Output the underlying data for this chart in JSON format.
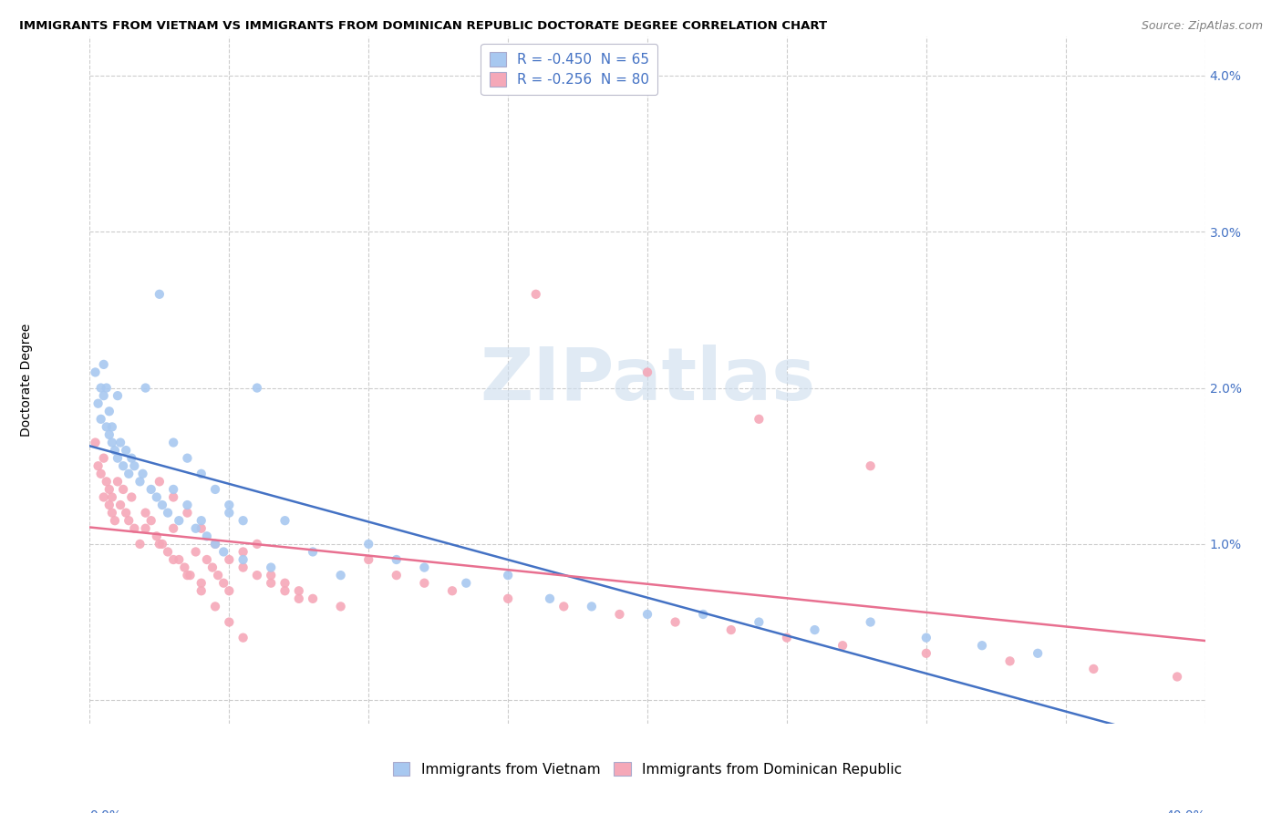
{
  "title": "IMMIGRANTS FROM VIETNAM VS IMMIGRANTS FROM DOMINICAN REPUBLIC DOCTORATE DEGREE CORRELATION CHART",
  "source": "Source: ZipAtlas.com",
  "ylabel": "Doctorate Degree",
  "xlim": [
    0.0,
    0.4
  ],
  "ylim": [
    -0.0015,
    0.0425
  ],
  "legend_blue_label": "R = -0.450  N = 65",
  "legend_pink_label": "R = -0.256  N = 80",
  "legend1_label": "Immigrants from Vietnam",
  "legend2_label": "Immigrants from Dominican Republic",
  "blue_color": "#A8C8F0",
  "pink_color": "#F5A8B8",
  "blue_line_color": "#4472C4",
  "pink_line_color": "#E87090",
  "tick_color": "#4472C4",
  "watermark": "ZIPatlas",
  "blue_scatter_x": [
    0.002,
    0.003,
    0.004,
    0.004,
    0.005,
    0.005,
    0.006,
    0.006,
    0.007,
    0.007,
    0.008,
    0.008,
    0.009,
    0.01,
    0.01,
    0.011,
    0.012,
    0.013,
    0.014,
    0.015,
    0.016,
    0.018,
    0.019,
    0.02,
    0.022,
    0.024,
    0.026,
    0.028,
    0.03,
    0.032,
    0.035,
    0.038,
    0.04,
    0.042,
    0.045,
    0.048,
    0.05,
    0.055,
    0.06,
    0.065,
    0.07,
    0.08,
    0.09,
    0.1,
    0.11,
    0.12,
    0.135,
    0.15,
    0.165,
    0.18,
    0.2,
    0.22,
    0.24,
    0.26,
    0.28,
    0.3,
    0.32,
    0.34,
    0.025,
    0.03,
    0.035,
    0.04,
    0.045,
    0.05,
    0.055
  ],
  "blue_scatter_y": [
    0.021,
    0.019,
    0.02,
    0.018,
    0.0215,
    0.0195,
    0.0175,
    0.02,
    0.0185,
    0.017,
    0.0165,
    0.0175,
    0.016,
    0.0195,
    0.0155,
    0.0165,
    0.015,
    0.016,
    0.0145,
    0.0155,
    0.015,
    0.014,
    0.0145,
    0.02,
    0.0135,
    0.013,
    0.0125,
    0.012,
    0.0135,
    0.0115,
    0.0125,
    0.011,
    0.0115,
    0.0105,
    0.01,
    0.0095,
    0.012,
    0.009,
    0.02,
    0.0085,
    0.0115,
    0.0095,
    0.008,
    0.01,
    0.009,
    0.0085,
    0.0075,
    0.008,
    0.0065,
    0.006,
    0.0055,
    0.0055,
    0.005,
    0.0045,
    0.005,
    0.004,
    0.0035,
    0.003,
    0.026,
    0.0165,
    0.0155,
    0.0145,
    0.0135,
    0.0125,
    0.0115
  ],
  "pink_scatter_x": [
    0.002,
    0.003,
    0.004,
    0.005,
    0.005,
    0.006,
    0.007,
    0.007,
    0.008,
    0.008,
    0.009,
    0.01,
    0.011,
    0.012,
    0.013,
    0.014,
    0.015,
    0.016,
    0.018,
    0.02,
    0.022,
    0.024,
    0.026,
    0.028,
    0.03,
    0.032,
    0.034,
    0.036,
    0.038,
    0.04,
    0.042,
    0.044,
    0.046,
    0.048,
    0.05,
    0.055,
    0.06,
    0.065,
    0.07,
    0.075,
    0.08,
    0.09,
    0.1,
    0.11,
    0.12,
    0.13,
    0.15,
    0.17,
    0.19,
    0.21,
    0.23,
    0.25,
    0.27,
    0.3,
    0.33,
    0.36,
    0.39,
    0.025,
    0.03,
    0.035,
    0.04,
    0.045,
    0.05,
    0.055,
    0.06,
    0.065,
    0.07,
    0.075,
    0.16,
    0.2,
    0.24,
    0.28,
    0.02,
    0.025,
    0.03,
    0.035,
    0.04,
    0.045,
    0.05,
    0.055
  ],
  "pink_scatter_y": [
    0.0165,
    0.015,
    0.0145,
    0.0155,
    0.013,
    0.014,
    0.0135,
    0.0125,
    0.013,
    0.012,
    0.0115,
    0.014,
    0.0125,
    0.0135,
    0.012,
    0.0115,
    0.013,
    0.011,
    0.01,
    0.012,
    0.0115,
    0.0105,
    0.01,
    0.0095,
    0.011,
    0.009,
    0.0085,
    0.008,
    0.0095,
    0.0075,
    0.009,
    0.0085,
    0.008,
    0.0075,
    0.007,
    0.0095,
    0.01,
    0.008,
    0.0075,
    0.007,
    0.0065,
    0.006,
    0.009,
    0.008,
    0.0075,
    0.007,
    0.0065,
    0.006,
    0.0055,
    0.005,
    0.0045,
    0.004,
    0.0035,
    0.003,
    0.0025,
    0.002,
    0.0015,
    0.014,
    0.013,
    0.012,
    0.011,
    0.01,
    0.009,
    0.0085,
    0.008,
    0.0075,
    0.007,
    0.0065,
    0.026,
    0.021,
    0.018,
    0.015,
    0.011,
    0.01,
    0.009,
    0.008,
    0.007,
    0.006,
    0.005,
    0.004
  ]
}
